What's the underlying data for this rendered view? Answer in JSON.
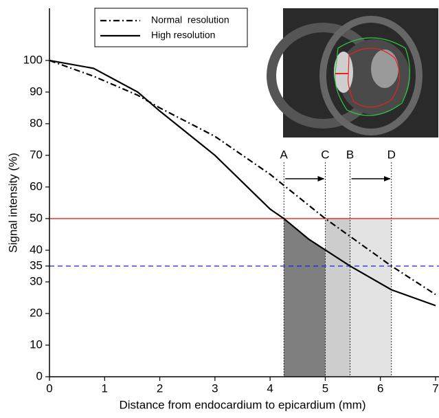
{
  "chart_data": {
    "type": "line",
    "xlabel": "Distance from endocardium to epicardium (mm)",
    "ylabel": "Signal intensity (%)",
    "xlim": [
      0,
      7
    ],
    "ylim": [
      0,
      116.5
    ],
    "xticks": [
      0,
      1,
      2,
      3,
      4,
      5,
      6,
      7
    ],
    "yticks": [
      0,
      10,
      20,
      30,
      35,
      40,
      50,
      60,
      70,
      80,
      90,
      100
    ],
    "series": [
      {
        "name": "Normal  resolution",
        "color": "#000000",
        "style": "dashdot",
        "x": [
          0,
          0.8,
          1.6,
          2,
          3,
          4,
          5,
          6.2,
          7
        ],
        "values": [
          100,
          95,
          89,
          85,
          76,
          64,
          50,
          35,
          26
        ]
      },
      {
        "name": "High resolution",
        "color": "#000000",
        "style": "solid",
        "x": [
          0,
          0.8,
          1.6,
          2,
          3,
          4,
          4.25,
          4.7,
          5.45,
          6.2,
          7
        ],
        "values": [
          100,
          97.5,
          90,
          84,
          70,
          53,
          50,
          43.5,
          35,
          27.5,
          22.5
        ]
      }
    ],
    "hlines": [
      {
        "value": 50,
        "color": "#e8221c",
        "style": "solid"
      },
      {
        "value": 35,
        "color": "#1c1ce8",
        "style": "dashed"
      }
    ],
    "markers": [
      {
        "label": "A",
        "x": 4.25
      },
      {
        "label": "C",
        "x": 5.0
      },
      {
        "label": "B",
        "x": 5.45
      },
      {
        "label": "D",
        "x": 6.2
      }
    ]
  }
}
